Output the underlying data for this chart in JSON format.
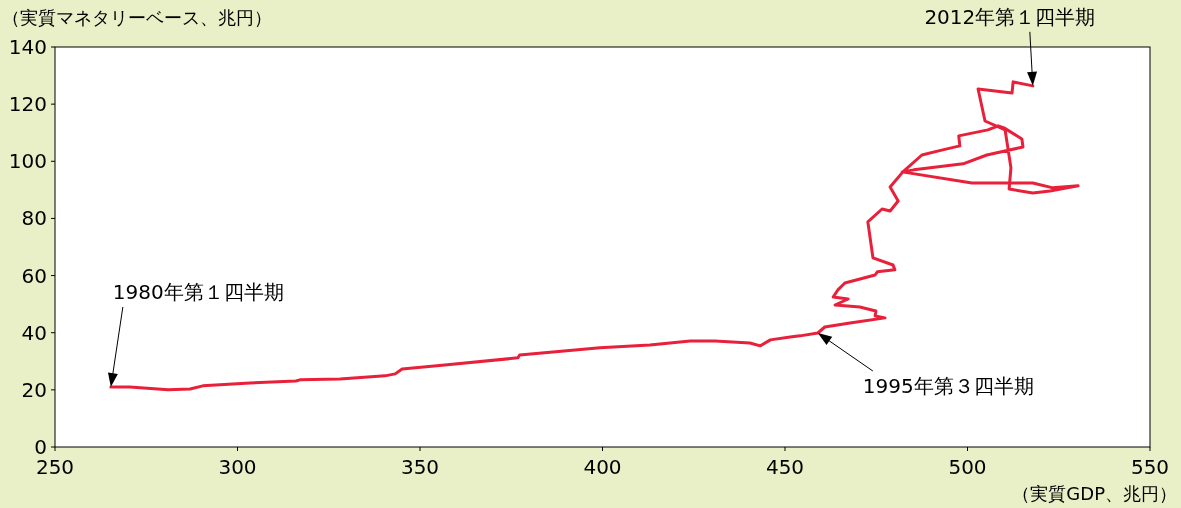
{
  "chart_data": {
    "type": "line",
    "ylabel": "（実質マネタリーベース、兆円）",
    "xlabel": "（実質GDP、兆円）",
    "xlim": [
      250,
      550
    ],
    "xticks": [
      250,
      300,
      350,
      400,
      450,
      500,
      550
    ],
    "ylim": [
      0,
      140
    ],
    "yticks": [
      0,
      20,
      40,
      60,
      80,
      100,
      120,
      140
    ],
    "grid": false,
    "marker": "none",
    "line_style": "solid",
    "series": [
      {
        "color": "#e8203a",
        "x": [
          265.3,
          270.5,
          281.0,
          287.0,
          290.5,
          303.4,
          316.0,
          317.1,
          328.1,
          340.4,
          343.2,
          345.1,
          356.8,
          376.8,
          377.3,
          399.3,
          413.0,
          424.0,
          430.8,
          440.4,
          443.2,
          446.0,
          451.4,
          454.1,
          459.0,
          460.9,
          467.8,
          477.4,
          474.7,
          474.9,
          470.5,
          463.7,
          467.3,
          463.2,
          464.5,
          466.4,
          474.7,
          475.3,
          480.1,
          479.6,
          474.1,
          472.7,
          476.6,
          478.8,
          481.0,
          478.8,
          482.3,
          487.5,
          493.2,
          497.9,
          497.6,
          505.6,
          508.4,
          510.0,
          514.9,
          515.2,
          505.3,
          498.8,
          485.3,
          482.1,
          501.2,
          517.9,
          523.4,
          530.3,
          522.6,
          517.9,
          511.4,
          511.9,
          510.3,
          504.8,
          502.9,
          512.2,
          512.5,
          517.9
        ],
        "values": [
          21.0,
          21.0,
          20.0,
          20.3,
          21.4,
          22.4,
          23.1,
          23.5,
          23.8,
          24.9,
          25.6,
          27.3,
          28.7,
          31.2,
          32.2,
          34.7,
          35.7,
          37.1,
          37.1,
          36.4,
          35.4,
          37.5,
          38.5,
          38.9,
          39.9,
          42.0,
          43.4,
          45.2,
          45.9,
          47.6,
          49.0,
          49.7,
          51.8,
          52.5,
          55.0,
          57.4,
          60.2,
          61.3,
          62.0,
          63.7,
          66.2,
          78.8,
          83.3,
          82.6,
          86.1,
          91.0,
          96.3,
          102.2,
          104.0,
          105.4,
          108.9,
          111.0,
          112.4,
          111.7,
          107.8,
          105.0,
          102.2,
          99.1,
          97.0,
          96.3,
          92.4,
          92.4,
          90.7,
          91.4,
          89.6,
          88.9,
          90.3,
          97.7,
          111.0,
          114.1,
          125.3,
          123.9,
          127.8,
          126.4
        ]
      }
    ],
    "annotations": [
      {
        "text": "2012年第１四半期",
        "x": 517.9,
        "y": 126.4
      },
      "1980年第１四半期",
      "1995年第３四半期"
    ]
  }
}
